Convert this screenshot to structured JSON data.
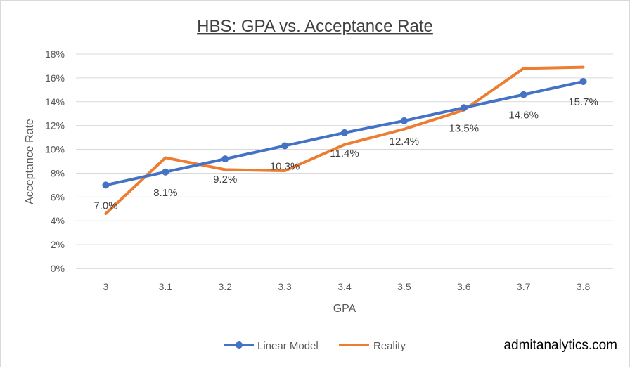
{
  "chart_data": {
    "type": "line",
    "title": "HBS: GPA vs. Acceptance Rate",
    "xlabel": "GPA",
    "ylabel": "Acceptance Rate",
    "categories": [
      "3",
      "3.1",
      "3.2",
      "3.3",
      "3.4",
      "3.5",
      "3.6",
      "3.7",
      "3.8"
    ],
    "yticks": [
      "0%",
      "2%",
      "4%",
      "6%",
      "8%",
      "10%",
      "12%",
      "14%",
      "16%",
      "18%"
    ],
    "ylim": [
      0,
      18
    ],
    "grid": true,
    "legend_position": "bottom",
    "series": [
      {
        "name": "Linear Model",
        "color": "#4472C4",
        "markers": true,
        "values": [
          7.0,
          8.1,
          9.2,
          10.3,
          11.4,
          12.4,
          13.5,
          14.6,
          15.7
        ],
        "data_labels": [
          "7.0%",
          "8.1%",
          "9.2%",
          "10.3%",
          "11.4%",
          "12.4%",
          "13.5%",
          "14.6%",
          "15.7%"
        ]
      },
      {
        "name": "Reality",
        "color": "#ED7D31",
        "markers": false,
        "values": [
          4.6,
          9.3,
          8.3,
          8.2,
          10.4,
          11.7,
          13.3,
          16.8,
          16.9
        ]
      }
    ]
  },
  "watermark": "admitanalytics.com"
}
